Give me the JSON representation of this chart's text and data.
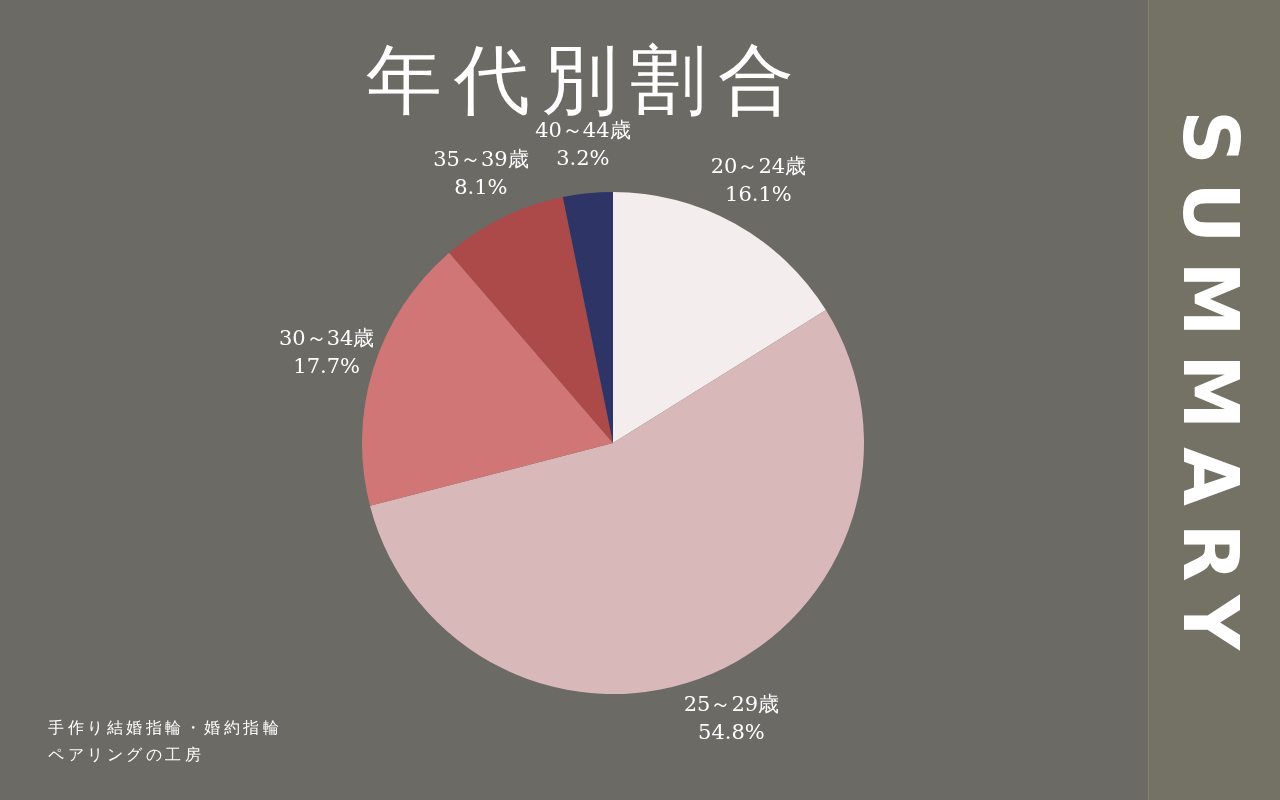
{
  "chart_data": {
    "type": "pie",
    "title": "年代別割合",
    "categories": [
      "20～24歳",
      "25～29歳",
      "30～34歳",
      "35～39歳",
      "40～44歳"
    ],
    "values": [
      16.1,
      54.8,
      17.7,
      8.1,
      3.2
    ],
    "value_labels": [
      "16.1%",
      "54.8%",
      "17.7%",
      "8.1%",
      "3.2%"
    ],
    "colors": [
      "#f3eded",
      "#d9b8ba",
      "#d07676",
      "#ac4a4a",
      "#2f3466"
    ],
    "annotations": [
      "SUMMARY",
      "手作り結婚指輪・婚約指輪",
      "ペアリングの工房"
    ]
  }
}
